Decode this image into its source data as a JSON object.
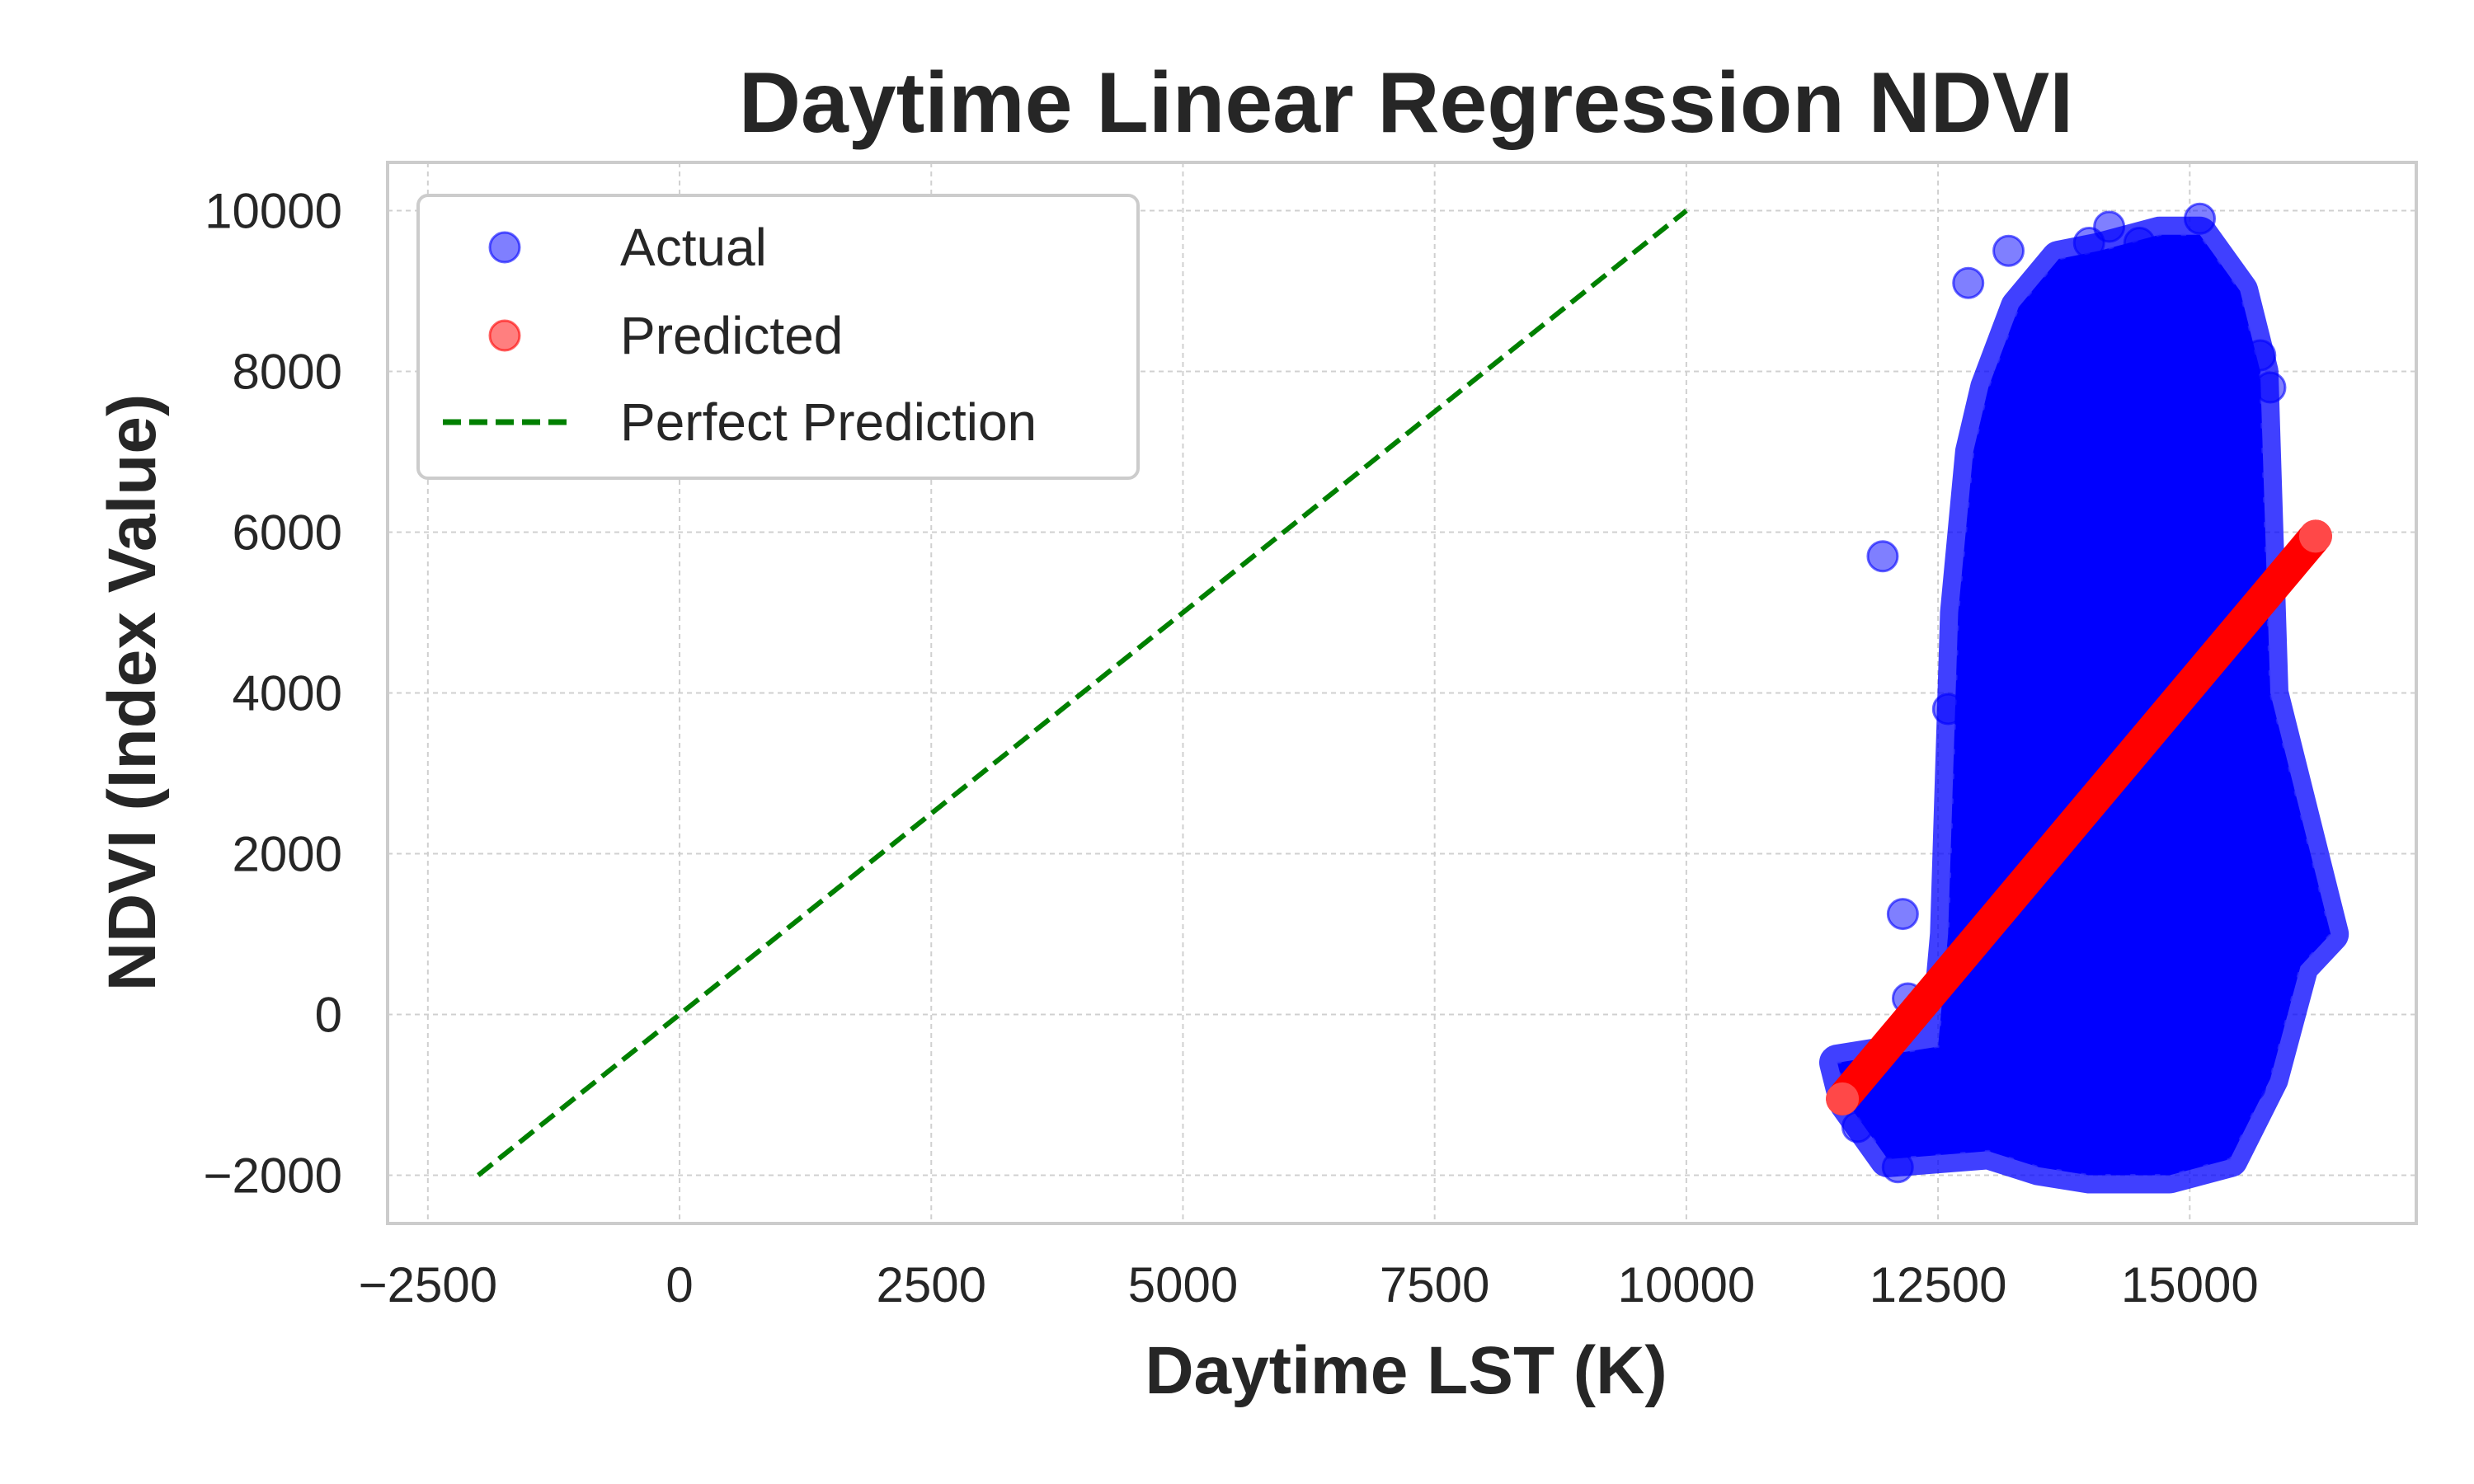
{
  "chart_data": {
    "type": "scatter",
    "title": "Daytime Linear Regression NDVI",
    "xlabel": "Daytime LST (K)",
    "ylabel": "NDVI (Index Value)",
    "xlim": [
      -2900,
      17250
    ],
    "ylim": [
      -2600,
      10600
    ],
    "x_ticks": [
      -2500,
      0,
      2500,
      5000,
      7500,
      10000,
      12500,
      15000
    ],
    "x_tick_labels": [
      "−2500",
      "0",
      "2500",
      "5000",
      "7500",
      "10000",
      "12500",
      "15000"
    ],
    "y_ticks": [
      -2000,
      0,
      2000,
      4000,
      6000,
      8000,
      10000
    ],
    "y_tick_labels": [
      "−2000",
      "0",
      "2000",
      "4000",
      "6000",
      "8000",
      "10000"
    ],
    "grid": true,
    "legend_position": "top-left",
    "series": [
      {
        "name": "Actual",
        "kind": "scatter",
        "color": "#0000ff",
        "envelope_left": [
          [
            11500,
            -600
          ],
          [
            12500,
            -400
          ],
          [
            12600,
            1000
          ],
          [
            12700,
            5000
          ],
          [
            12850,
            7000
          ],
          [
            13000,
            7800
          ],
          [
            13300,
            8800
          ],
          [
            13700,
            9400
          ],
          [
            14100,
            9500
          ],
          [
            14700,
            9700
          ]
        ],
        "envelope_right": [
          [
            15100,
            9700
          ],
          [
            15500,
            9000
          ],
          [
            15700,
            8000
          ],
          [
            15800,
            4000
          ],
          [
            16200,
            2000
          ],
          [
            16400,
            1000
          ],
          [
            16100,
            600
          ],
          [
            15800,
            -800
          ],
          [
            15400,
            -1800
          ],
          [
            14800,
            -2000
          ],
          [
            14000,
            -2000
          ],
          [
            13500,
            -1900
          ],
          [
            13000,
            -1700
          ],
          [
            12000,
            -1800
          ],
          [
            11600,
            -1100
          ]
        ],
        "outliers": [
          [
            11950,
            5700
          ],
          [
            12150,
            1250
          ],
          [
            12600,
            3800
          ],
          [
            12800,
            9100
          ],
          [
            13200,
            9500
          ],
          [
            14000,
            9600
          ],
          [
            14200,
            9800
          ],
          [
            14500,
            9600
          ],
          [
            15100,
            9900
          ],
          [
            15700,
            8200
          ],
          [
            15800,
            7800
          ],
          [
            15600,
            -900
          ],
          [
            11700,
            -1400
          ],
          [
            12200,
            200
          ],
          [
            12100,
            -1900
          ]
        ]
      },
      {
        "name": "Predicted",
        "kind": "scatter",
        "color": "#ff0000",
        "line_start": [
          11550,
          -1050
        ],
        "line_end": [
          16250,
          5950
        ]
      },
      {
        "name": "Perfect Prediction",
        "kind": "line",
        "style": "dashed",
        "color": "#008000",
        "x": [
          -2000,
          10000
        ],
        "y": [
          -2000,
          10000
        ]
      }
    ]
  }
}
